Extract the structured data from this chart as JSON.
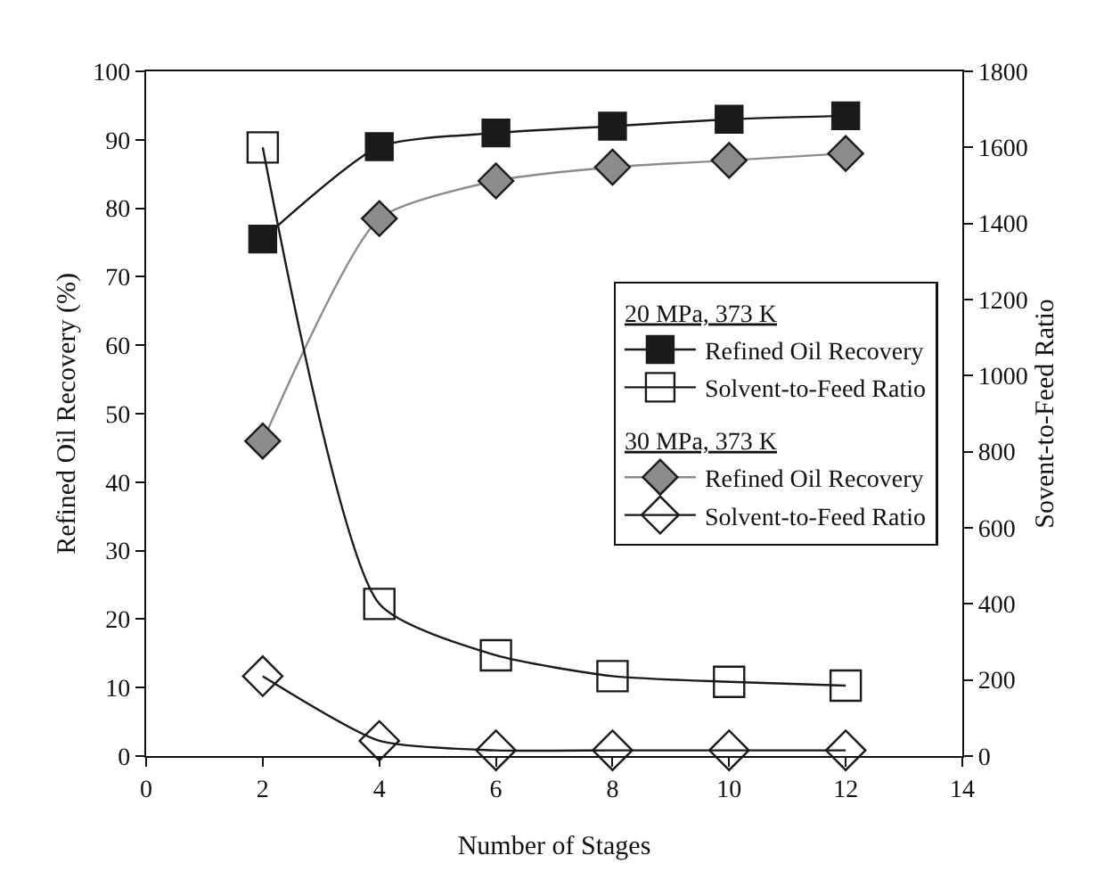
{
  "chart_data": {
    "type": "line",
    "xlabel": "Number of Stages",
    "ylabel": "Refined Oil Recovery (%)",
    "y2label": "Sovent-to-Feed Ratio",
    "x": [
      2,
      4,
      6,
      8,
      10,
      12
    ],
    "xlim": [
      0,
      14
    ],
    "xticks": [
      0,
      2,
      4,
      6,
      8,
      10,
      12,
      14
    ],
    "ylim": [
      0,
      100
    ],
    "yticks": [
      0,
      10,
      20,
      30,
      40,
      50,
      60,
      70,
      80,
      90,
      100
    ],
    "y2lim": [
      0,
      1800
    ],
    "y2ticks": [
      0,
      200,
      400,
      600,
      800,
      1000,
      1200,
      1400,
      1600,
      1800
    ],
    "series": [
      {
        "name": "Refined Oil Recovery",
        "color": "#1a1a1a",
        "marker": "square",
        "values": [
          75.5,
          89,
          91,
          92,
          93,
          93.5
        ]
      },
      {
        "name": "Solvent-to-Feed Ratio",
        "color": "#1a1a1a",
        "marker": "square",
        "axis": "y2",
        "values": [
          1600,
          400,
          265,
          210,
          195,
          185
        ]
      },
      {
        "name": "Refined Oil Recovery",
        "color": "#8c8c8c",
        "marker": "diamond",
        "values": [
          46,
          78.5,
          84,
          86,
          87,
          88
        ]
      },
      {
        "name": "Solvent-to-Feed Ratio",
        "color": "#1a1a1a",
        "marker": "diamond",
        "axis": "y2",
        "values": [
          210,
          40,
          15,
          15,
          15,
          15
        ]
      }
    ],
    "annotations": [
      "20 MPa, 373 K",
      "30 MPa, 373 K"
    ],
    "grid": false,
    "legend": "right",
    "line_style": "solid"
  }
}
